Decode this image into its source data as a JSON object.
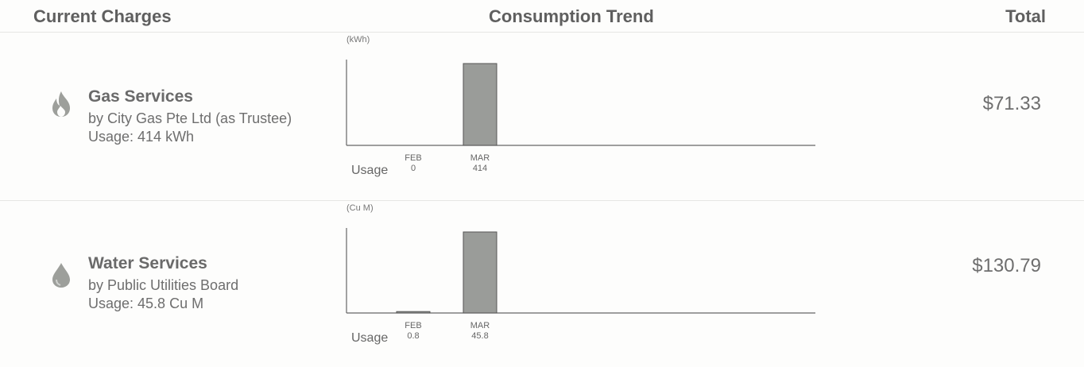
{
  "header": {
    "current_charges": "Current Charges",
    "consumption_trend": "Consumption Trend",
    "total": "Total"
  },
  "services": [
    {
      "title": "Gas Services",
      "provider": "by City Gas Pte Ltd (as Trustee)",
      "usage": "Usage: 414 kWh",
      "total": "$71.33",
      "icon": "flame-icon",
      "chart_data": {
        "type": "bar",
        "unit_label": "(kWh)",
        "categories": [
          "FEB",
          "MAR"
        ],
        "values": [
          0,
          414
        ],
        "value_labels": [
          "0",
          "414"
        ],
        "row_label": "Usage",
        "ylim": [
          0,
          414
        ]
      }
    },
    {
      "title": "Water Services",
      "provider": "by Public Utilities Board",
      "usage": "Usage: 45.8 Cu M",
      "total": "$130.79",
      "icon": "water-drop-icon",
      "chart_data": {
        "type": "bar",
        "unit_label": "(Cu M)",
        "categories": [
          "FEB",
          "MAR"
        ],
        "values": [
          0.8,
          45.8
        ],
        "value_labels": [
          "0.8",
          "45.8"
        ],
        "row_label": "Usage",
        "ylim": [
          0,
          45.8
        ]
      }
    }
  ],
  "colors": {
    "bar": "#9a9c99",
    "text": "#6e6e6e",
    "icon": "#9d9f9b"
  }
}
